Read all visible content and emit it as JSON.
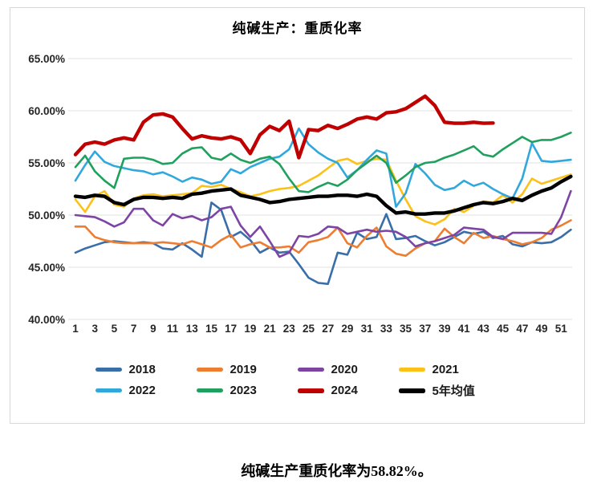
{
  "caption": {
    "text": "纯碱生产重质化率为58.82%。"
  },
  "chart_data": {
    "type": "line",
    "title": "纯碱生产：重质化率",
    "xlabel": "",
    "ylabel": "",
    "x_unit": "week",
    "x": [
      1,
      2,
      3,
      4,
      5,
      6,
      7,
      8,
      9,
      10,
      11,
      12,
      13,
      14,
      15,
      16,
      17,
      18,
      19,
      20,
      21,
      22,
      23,
      24,
      25,
      26,
      27,
      28,
      29,
      30,
      31,
      32,
      33,
      34,
      35,
      36,
      37,
      38,
      39,
      40,
      41,
      42,
      43,
      44,
      45,
      46,
      47,
      48,
      49,
      50,
      51,
      52
    ],
    "x_tick_labels": [
      "1",
      "3",
      "5",
      "7",
      "9",
      "11",
      "13",
      "15",
      "17",
      "19",
      "21",
      "23",
      "25",
      "27",
      "29",
      "31",
      "33",
      "35",
      "37",
      "39",
      "41",
      "43",
      "45",
      "47",
      "49",
      "51"
    ],
    "ylim": [
      40,
      65
    ],
    "y_tick_labels": [
      "65.00%",
      "60.00%",
      "55.00%",
      "50.00%",
      "45.00%",
      "40.00%"
    ],
    "grid": "horizontal",
    "gridline_color": "#e2e2e2",
    "legend_position": "bottom",
    "latest_2024_value": "58.82%",
    "series": [
      {
        "name": "2018",
        "color": "#3a6ea8",
        "bold": false,
        "values": [
          46.4,
          46.8,
          47.1,
          47.4,
          47.5,
          47.4,
          47.3,
          47.4,
          47.3,
          46.8,
          46.7,
          47.3,
          46.7,
          46.0,
          51.2,
          50.5,
          47.9,
          48.4,
          47.6,
          46.4,
          46.9,
          46.4,
          46.5,
          45.3,
          44.0,
          43.5,
          43.4,
          46.4,
          46.2,
          48.3,
          47.7,
          47.9,
          50.1,
          47.7,
          47.8,
          48.0,
          47.5,
          47.1,
          47.4,
          47.9,
          48.4,
          48.2,
          48.4,
          47.8,
          48.0,
          47.2,
          47.0,
          47.4,
          47.3,
          47.4,
          47.9,
          48.6
        ]
      },
      {
        "name": "2019",
        "color": "#ed7d31",
        "bold": false,
        "values": [
          48.9,
          48.9,
          47.9,
          47.6,
          47.4,
          47.3,
          47.3,
          47.3,
          47.3,
          47.4,
          47.3,
          47.2,
          47.5,
          47.2,
          46.9,
          47.6,
          48.1,
          46.9,
          47.2,
          47.4,
          46.9,
          46.9,
          47.0,
          46.4,
          47.4,
          47.6,
          47.9,
          48.8,
          47.3,
          46.9,
          48.0,
          48.8,
          47.0,
          46.3,
          46.1,
          46.8,
          47.3,
          47.5,
          48.7,
          47.9,
          47.3,
          48.3,
          47.8,
          48.0,
          47.7,
          47.5,
          47.2,
          47.4,
          47.8,
          48.6,
          49.0,
          49.5
        ]
      },
      {
        "name": "2020",
        "color": "#7d44a5",
        "bold": false,
        "values": [
          50.0,
          49.9,
          49.8,
          49.4,
          48.9,
          49.3,
          50.6,
          50.6,
          49.5,
          49.0,
          50.1,
          49.7,
          49.9,
          49.5,
          49.8,
          50.6,
          50.8,
          49.0,
          47.9,
          48.9,
          47.5,
          46.0,
          46.4,
          48.0,
          47.9,
          48.2,
          48.9,
          48.8,
          48.2,
          48.4,
          48.6,
          48.4,
          48.5,
          48.4,
          47.9,
          47.0,
          47.3,
          47.5,
          47.8,
          48.1,
          48.8,
          48.7,
          48.6,
          47.9,
          47.7,
          48.3,
          48.3,
          48.3,
          48.3,
          48.2,
          49.8,
          52.3
        ]
      },
      {
        "name": "2021",
        "color": "#fcc117",
        "bold": false,
        "values": [
          51.5,
          50.3,
          51.8,
          52.3,
          51.0,
          50.8,
          51.6,
          51.9,
          52.0,
          51.8,
          51.9,
          52.0,
          52.1,
          52.8,
          52.7,
          52.9,
          52.5,
          52.2,
          51.8,
          52.0,
          52.3,
          52.5,
          52.6,
          52.8,
          53.3,
          53.8,
          54.5,
          55.2,
          55.4,
          54.9,
          55.2,
          55.4,
          55.3,
          53.3,
          51.5,
          49.9,
          49.4,
          49.1,
          49.6,
          50.6,
          50.3,
          50.9,
          51.3,
          51.2,
          51.9,
          51.2,
          52.0,
          53.5,
          53.0,
          53.3,
          53.6,
          53.9
        ]
      },
      {
        "name": "2022",
        "color": "#31a8dc",
        "bold": false,
        "values": [
          53.3,
          54.8,
          56.1,
          55.1,
          54.7,
          54.5,
          54.3,
          54.2,
          53.9,
          54.1,
          53.7,
          53.2,
          53.6,
          53.4,
          53.0,
          53.2,
          54.4,
          54.0,
          54.6,
          55.0,
          55.4,
          55.6,
          56.3,
          58.3,
          56.8,
          56.0,
          55.4,
          55.0,
          53.6,
          54.3,
          55.3,
          56.2,
          55.9,
          50.8,
          52.1,
          54.9,
          54.0,
          52.9,
          52.4,
          52.6,
          53.3,
          52.8,
          53.1,
          52.5,
          52.0,
          51.6,
          53.5,
          56.9,
          55.2,
          55.1,
          55.2,
          55.3
        ]
      },
      {
        "name": "2023",
        "color": "#1fa15d",
        "bold": false,
        "values": [
          54.6,
          55.7,
          54.2,
          53.3,
          52.6,
          55.4,
          55.5,
          55.5,
          55.3,
          54.9,
          55.0,
          55.9,
          56.4,
          56.5,
          55.5,
          55.3,
          55.9,
          55.3,
          55.0,
          55.4,
          55.6,
          54.9,
          53.5,
          52.3,
          52.2,
          52.7,
          53.1,
          52.8,
          53.4,
          54.3,
          55.0,
          55.7,
          55.0,
          53.1,
          53.8,
          54.6,
          55.0,
          55.1,
          55.5,
          55.8,
          56.2,
          56.6,
          55.8,
          55.6,
          56.3,
          56.9,
          57.5,
          57.0,
          57.2,
          57.2,
          57.5,
          57.9
        ]
      },
      {
        "name": "2024",
        "color": "#c00000",
        "bold": true,
        "values": [
          55.8,
          56.8,
          57.0,
          56.8,
          57.2,
          57.4,
          57.2,
          58.9,
          59.6,
          59.7,
          59.4,
          58.3,
          57.3,
          57.6,
          57.4,
          57.3,
          57.5,
          57.2,
          55.9,
          57.7,
          58.5,
          58.1,
          59.0,
          55.5,
          58.2,
          58.1,
          58.6,
          58.3,
          58.7,
          59.2,
          59.4,
          59.2,
          59.8,
          59.9,
          60.2,
          60.8,
          61.4,
          60.5,
          58.9,
          58.8,
          58.8,
          58.9,
          58.8,
          58.82,
          null,
          null,
          null,
          null,
          null,
          null,
          null,
          null
        ]
      },
      {
        "name": "5年均值",
        "color": "#000000",
        "bold": true,
        "values": [
          51.8,
          51.7,
          51.9,
          51.8,
          51.2,
          51.0,
          51.5,
          51.7,
          51.7,
          51.6,
          51.7,
          51.6,
          52.0,
          52.1,
          52.3,
          52.4,
          52.5,
          51.9,
          51.7,
          51.5,
          51.2,
          51.3,
          51.5,
          51.6,
          51.7,
          51.8,
          51.8,
          51.9,
          51.9,
          51.8,
          52.0,
          51.8,
          50.9,
          50.2,
          50.3,
          50.1,
          50.1,
          50.2,
          50.2,
          50.4,
          50.7,
          51.0,
          51.2,
          51.1,
          51.3,
          51.6,
          51.4,
          51.9,
          52.3,
          52.6,
          53.2,
          53.7
        ]
      }
    ]
  }
}
